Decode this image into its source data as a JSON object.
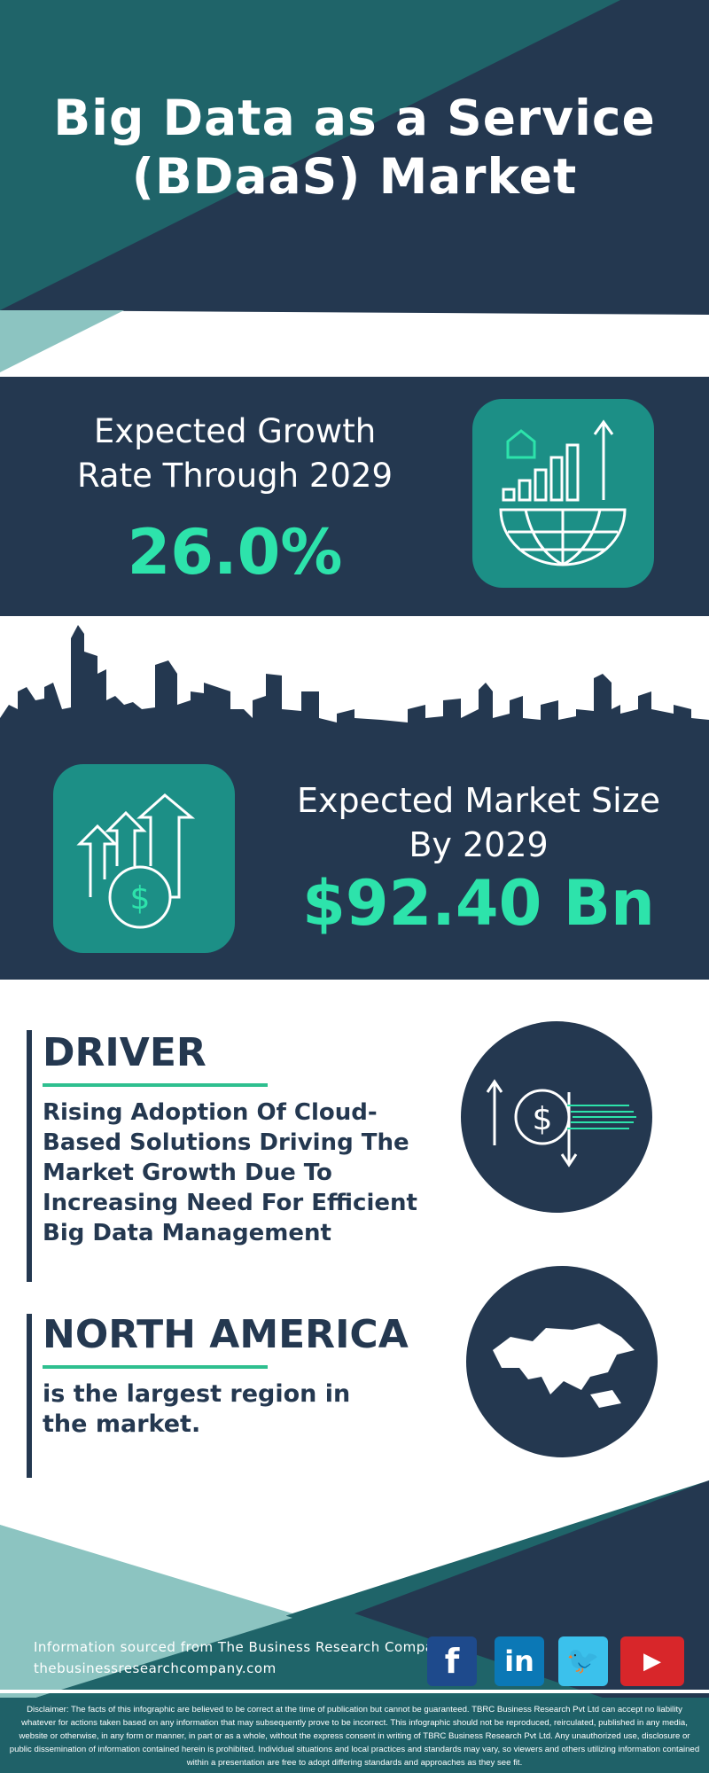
{
  "header": {
    "title_line1": "Big Data as a Service",
    "title_line2": "(BDaaS) Market"
  },
  "growth": {
    "label": "Expected Growth Rate Through 2029",
    "value": "26.0%",
    "icon": "growth-chart-globe-icon"
  },
  "market_size": {
    "label_line1": "Expected Market Size",
    "label_line2": "By 2029",
    "value": "$92.40 Bn",
    "icon": "dollar-growth-arrows-icon"
  },
  "driver": {
    "heading": "DRIVER",
    "text": "Rising Adoption Of Cloud-Based Solutions Driving The Market Growth Due To Increasing Need For Efficient Big Data Management",
    "icon": "dollar-exchange-icon"
  },
  "region": {
    "heading": "NORTH AMERICA",
    "text": "is the largest region in the market.",
    "icon": "world-map-icon"
  },
  "footer": {
    "source": "Information sourced from The Business Research Company",
    "website": "thebusinessresearchcompany.com",
    "social": [
      "facebook",
      "linkedin",
      "twitter",
      "youtube"
    ],
    "disclaimer": "Disclaimer: The facts of this infographic are believed to be correct at the time of publication but cannot be guaranteed. TBRC Business Research Pvt Ltd can accept no liability whatever for actions taken based on any information that may subsequently prove to be incorrect. This infographic should not be reproduced, reirculated, published in any media, website or otherwise, in any form or manner, in part or as a whole, without the express consent in writing of TBRC Business Research Pvt Ltd. Any unauthorized use, disclosure or public dissemination of information contained herein is prohibited. Individual situations and local practices and standards may vary, so viewers and others utilizing information contained within a presentation are free to adopt differing standards and approaches as they see fit."
  },
  "colors": {
    "dark": "#243850",
    "teal": "#1f6469",
    "light_teal": "#8cc4c1",
    "accent": "#2de3ab",
    "icon_box": "#1c8f86"
  }
}
